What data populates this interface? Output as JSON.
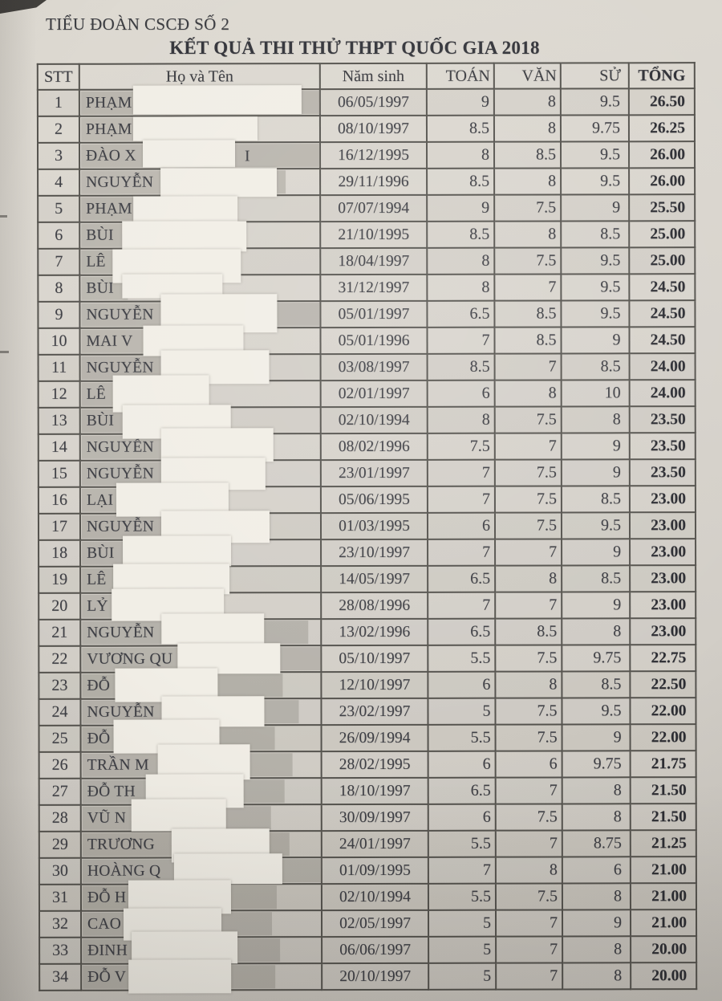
{
  "page": {
    "unit": "TIỂU ĐOÀN CSCĐ SỐ 2",
    "title": "KẾT QUẢ THI THỬ THPT QUỐC GIA 2018"
  },
  "table": {
    "headers": {
      "stt": "STT",
      "name": "Họ và Tên",
      "dob": "Năm sinh",
      "math": "TOÁN",
      "literature": "VĂN",
      "history": "SỬ",
      "total": "TỔNG"
    },
    "rows": [
      {
        "stt": "1",
        "name_visible": "PHẠM",
        "name_suffix": "",
        "dob": "06/05/1997",
        "math": "9",
        "literature": "8",
        "history": "9.5",
        "total": "26.50"
      },
      {
        "stt": "2",
        "name_visible": "PHẠM",
        "name_suffix": "",
        "dob": "08/10/1997",
        "math": "8.5",
        "literature": "8",
        "history": "9.75",
        "total": "26.25"
      },
      {
        "stt": "3",
        "name_visible": "ĐÀO X",
        "name_suffix": "I",
        "dob": "16/12/1995",
        "math": "8",
        "literature": "8.5",
        "history": "9.5",
        "total": "26.00"
      },
      {
        "stt": "4",
        "name_visible": "NGUYỄN",
        "name_suffix": "",
        "dob": "29/11/1996",
        "math": "8.5",
        "literature": "8",
        "history": "9.5",
        "total": "26.00"
      },
      {
        "stt": "5",
        "name_visible": "PHẠM",
        "name_suffix": "",
        "dob": "07/07/1994",
        "math": "9",
        "literature": "7.5",
        "history": "9",
        "total": "25.50"
      },
      {
        "stt": "6",
        "name_visible": "BÙI",
        "name_suffix": "",
        "dob": "21/10/1995",
        "math": "8.5",
        "literature": "8",
        "history": "8.5",
        "total": "25.00"
      },
      {
        "stt": "7",
        "name_visible": "LÊ",
        "name_suffix": "",
        "dob": "18/04/1997",
        "math": "8",
        "literature": "7.5",
        "history": "9.5",
        "total": "25.00"
      },
      {
        "stt": "8",
        "name_visible": "BÙI",
        "name_suffix": "",
        "dob": "31/12/1997",
        "math": "8",
        "literature": "7",
        "history": "9.5",
        "total": "24.50"
      },
      {
        "stt": "9",
        "name_visible": "NGUYỄN",
        "name_suffix": "",
        "dob": "05/01/1997",
        "math": "6.5",
        "literature": "8.5",
        "history": "9.5",
        "total": "24.50"
      },
      {
        "stt": "10",
        "name_visible": "MAI V",
        "name_suffix": "",
        "dob": "05/01/1996",
        "math": "7",
        "literature": "8.5",
        "history": "9",
        "total": "24.50"
      },
      {
        "stt": "11",
        "name_visible": "NGUYỄN",
        "name_suffix": "",
        "dob": "03/08/1997",
        "math": "8.5",
        "literature": "7",
        "history": "8.5",
        "total": "24.00"
      },
      {
        "stt": "12",
        "name_visible": "LÊ",
        "name_suffix": "",
        "dob": "02/01/1997",
        "math": "6",
        "literature": "8",
        "history": "10",
        "total": "24.00"
      },
      {
        "stt": "13",
        "name_visible": "BÙI",
        "name_suffix": "",
        "dob": "02/10/1994",
        "math": "8",
        "literature": "7.5",
        "history": "8",
        "total": "23.50"
      },
      {
        "stt": "14",
        "name_visible": "NGUYỄN",
        "name_suffix": "",
        "dob": "08/02/1996",
        "math": "7.5",
        "literature": "7",
        "history": "9",
        "total": "23.50"
      },
      {
        "stt": "15",
        "name_visible": "NGUYỄN",
        "name_suffix": "",
        "dob": "23/01/1997",
        "math": "7",
        "literature": "7.5",
        "history": "9",
        "total": "23.50"
      },
      {
        "stt": "16",
        "name_visible": "LẠI",
        "name_suffix": "",
        "dob": "05/06/1995",
        "math": "7",
        "literature": "7.5",
        "history": "8.5",
        "total": "23.00"
      },
      {
        "stt": "17",
        "name_visible": "NGUYỄN",
        "name_suffix": "",
        "dob": "01/03/1995",
        "math": "6",
        "literature": "7.5",
        "history": "9.5",
        "total": "23.00"
      },
      {
        "stt": "18",
        "name_visible": "BÙI",
        "name_suffix": "",
        "dob": "23/10/1997",
        "math": "7",
        "literature": "7",
        "history": "9",
        "total": "23.00"
      },
      {
        "stt": "19",
        "name_visible": "LÊ",
        "name_suffix": "",
        "dob": "14/05/1997",
        "math": "6.5",
        "literature": "8",
        "history": "8.5",
        "total": "23.00"
      },
      {
        "stt": "20",
        "name_visible": "LỶ",
        "name_suffix": "",
        "dob": "28/08/1996",
        "math": "7",
        "literature": "7",
        "history": "9",
        "total": "23.00"
      },
      {
        "stt": "21",
        "name_visible": "NGUYỄN",
        "name_suffix": "",
        "dob": "13/02/1996",
        "math": "6.5",
        "literature": "8.5",
        "history": "8",
        "total": "23.00"
      },
      {
        "stt": "22",
        "name_visible": "VƯƠNG QU",
        "name_suffix": "",
        "dob": "05/10/1997",
        "math": "5.5",
        "literature": "7.5",
        "history": "9.75",
        "total": "22.75"
      },
      {
        "stt": "23",
        "name_visible": "ĐỖ",
        "name_suffix": "",
        "dob": "12/10/1997",
        "math": "6",
        "literature": "8",
        "history": "8.5",
        "total": "22.50"
      },
      {
        "stt": "24",
        "name_visible": "NGUYỄN",
        "name_suffix": "",
        "dob": "23/02/1997",
        "math": "5",
        "literature": "7.5",
        "history": "9.5",
        "total": "22.00"
      },
      {
        "stt": "25",
        "name_visible": "ĐỖ",
        "name_suffix": "",
        "dob": "26/09/1994",
        "math": "5.5",
        "literature": "7.5",
        "history": "9",
        "total": "22.00"
      },
      {
        "stt": "26",
        "name_visible": "TRẦN M",
        "name_suffix": "",
        "dob": "28/02/1995",
        "math": "6",
        "literature": "6",
        "history": "9.75",
        "total": "21.75"
      },
      {
        "stt": "27",
        "name_visible": "ĐỖ TH",
        "name_suffix": "",
        "dob": "18/10/1997",
        "math": "6.5",
        "literature": "7",
        "history": "8",
        "total": "21.50"
      },
      {
        "stt": "28",
        "name_visible": "VŨ N",
        "name_suffix": "",
        "dob": "30/09/1997",
        "math": "6",
        "literature": "7.5",
        "history": "8",
        "total": "21.50"
      },
      {
        "stt": "29",
        "name_visible": "TRƯƠNG",
        "name_suffix": "",
        "dob": "24/01/1997",
        "math": "5.5",
        "literature": "7",
        "history": "8.75",
        "total": "21.25"
      },
      {
        "stt": "30",
        "name_visible": "HOÀNG Q",
        "name_suffix": "",
        "dob": "01/09/1995",
        "math": "7",
        "literature": "8",
        "history": "6",
        "total": "21.00"
      },
      {
        "stt": "31",
        "name_visible": "ĐỖ H",
        "name_suffix": "",
        "dob": "02/10/1994",
        "math": "5.5",
        "literature": "7.5",
        "history": "8",
        "total": "21.00"
      },
      {
        "stt": "32",
        "name_visible": "CAO",
        "name_suffix": "",
        "dob": "02/05/1997",
        "math": "5",
        "literature": "7",
        "history": "9",
        "total": "21.00"
      },
      {
        "stt": "33",
        "name_visible": "ĐINH",
        "name_suffix": "",
        "dob": "06/06/1997",
        "math": "5",
        "literature": "7",
        "history": "8",
        "total": "20.00"
      },
      {
        "stt": "34",
        "name_visible": "ĐỖ V",
        "name_suffix": "",
        "dob": "20/10/1997",
        "math": "5",
        "literature": "7",
        "history": "8",
        "total": "20.00"
      }
    ]
  },
  "colors": {
    "paper": "#d6d2cb",
    "ink": "#3e3f45",
    "table_border": "#55534e",
    "name_highlight": "#b7b4ad",
    "redaction_box": "#f1eee6"
  }
}
